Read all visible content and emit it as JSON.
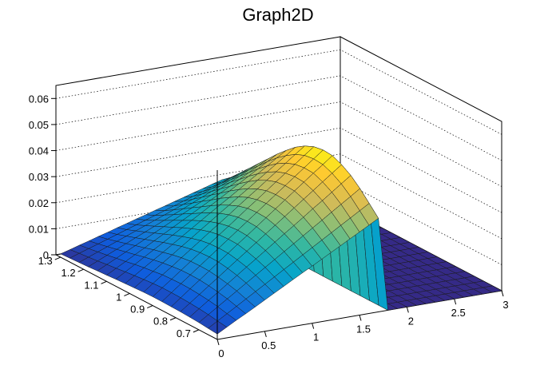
{
  "chart_data": {
    "type": "surface",
    "title": "Graph2D",
    "xlim": [
      0,
      3
    ],
    "ylim": [
      0.62,
      1.32
    ],
    "zlim": [
      0,
      0.065
    ],
    "x_ticks": [
      "0",
      "0.5",
      "1",
      "1.5",
      "2",
      "2.5",
      "3"
    ],
    "x_tick_values": [
      0,
      0.5,
      1,
      1.5,
      2,
      2.5,
      3
    ],
    "y_ticks": [
      "0.7",
      "0.8",
      "0.9",
      "1",
      "1.1",
      "1.2",
      "1.3"
    ],
    "y_tick_values": [
      0.7,
      0.8,
      0.9,
      1.0,
      1.1,
      1.2,
      1.3
    ],
    "z_ticks": [
      "0",
      "0.01",
      "0.02",
      "0.03",
      "0.04",
      "0.05",
      "0.06"
    ],
    "z_tick_values": [
      0,
      0.01,
      0.02,
      0.03,
      0.04,
      0.05,
      0.06
    ],
    "grid": "dotted back walls",
    "colormap": [
      "#352a87",
      "#0f5cdd",
      "#1481d6",
      "#06a4ca",
      "#2eb7a4",
      "#87bf77",
      "#d1bb59",
      "#fec832",
      "#f9fb0e"
    ],
    "surface_x": [
      0,
      0.1,
      0.2,
      0.3,
      0.4,
      0.5,
      0.6,
      0.7,
      0.8,
      0.9,
      1.0,
      1.1,
      1.2,
      1.3,
      1.4,
      1.5,
      1.6,
      1.7,
      1.8,
      1.9,
      2.0,
      2.1,
      2.2,
      2.3,
      2.4,
      2.5,
      2.6,
      2.7,
      2.8,
      2.9,
      3.0
    ],
    "surface_y": [
      0.62,
      0.66,
      0.7,
      0.74,
      0.78,
      0.82,
      0.86,
      0.9,
      0.94,
      0.98,
      1.02,
      1.06,
      1.1,
      1.14,
      1.18,
      1.22,
      1.26,
      1.3
    ],
    "surface_z": [
      [
        0.0021,
        0.0041,
        0.0061,
        0.008,
        0.01,
        0.012,
        0.014,
        0.016,
        0.018,
        0.02,
        0.0219,
        0.0239,
        0.0259,
        0.0279,
        0.0299,
        0.0319,
        0.0339,
        0.0359,
        0.0,
        0.0,
        0.0,
        0.0,
        0.0,
        0.0,
        0.0,
        0.0,
        0.0,
        0.0,
        0.0,
        0.0,
        0.0
      ],
      [
        0.0024,
        0.0046,
        0.0068,
        0.009,
        0.0112,
        0.0134,
        0.0156,
        0.0178,
        0.02,
        0.0222,
        0.0244,
        0.0266,
        0.0288,
        0.031,
        0.0332,
        0.0354,
        0.0376,
        0.0398,
        0.0,
        0.0,
        0.0,
        0.0,
        0.0,
        0.0,
        0.0,
        0.0,
        0.0,
        0.0,
        0.0,
        0.0,
        0.0
      ],
      [
        0.0028,
        0.0052,
        0.0076,
        0.01,
        0.0124,
        0.0148,
        0.0172,
        0.0196,
        0.022,
        0.0244,
        0.0268,
        0.0292,
        0.0316,
        0.034,
        0.0364,
        0.0388,
        0.0412,
        0.0436,
        0.0,
        0.0,
        0.0,
        0.0,
        0.0,
        0.0,
        0.0,
        0.0,
        0.0,
        0.0,
        0.0,
        0.0,
        0.0
      ],
      [
        0.003,
        0.0056,
        0.0082,
        0.0107,
        0.0133,
        0.0159,
        0.0185,
        0.021,
        0.0236,
        0.0262,
        0.0288,
        0.0313,
        0.0339,
        0.0365,
        0.039,
        0.0416,
        0.0442,
        0.0468,
        0.0,
        0.0,
        0.0,
        0.0,
        0.0,
        0.0,
        0.0,
        0.0,
        0.0,
        0.0,
        0.0,
        0.0,
        0.0
      ],
      [
        0.0032,
        0.0059,
        0.0086,
        0.0113,
        0.014,
        0.0167,
        0.0194,
        0.0221,
        0.0248,
        0.0275,
        0.0302,
        0.0329,
        0.0356,
        0.0383,
        0.041,
        0.0437,
        0.0464,
        0.0491,
        0.0,
        0.0,
        0.0,
        0.0,
        0.0,
        0.0,
        0.0,
        0.0,
        0.0,
        0.0,
        0.0,
        0.0,
        0.0
      ],
      [
        0.0033,
        0.0061,
        0.0089,
        0.0117,
        0.0145,
        0.0173,
        0.0201,
        0.0229,
        0.0256,
        0.0284,
        0.0312,
        0.034,
        0.0368,
        0.0396,
        0.0424,
        0.0452,
        0.0479,
        0.0507,
        0.0,
        0.0,
        0.0,
        0.0,
        0.0,
        0.0,
        0.0,
        0.0,
        0.0,
        0.0,
        0.0,
        0.0,
        0.0
      ],
      [
        0.0034,
        0.0062,
        0.009,
        0.0118,
        0.0146,
        0.0174,
        0.0202,
        0.023,
        0.0258,
        0.0286,
        0.0314,
        0.0342,
        0.037,
        0.0398,
        0.0426,
        0.0454,
        0.0482,
        0.051,
        0.0,
        0.0,
        0.0,
        0.0,
        0.0,
        0.0,
        0.0,
        0.0,
        0.0,
        0.0,
        0.0,
        0.0,
        0.0
      ],
      [
        0.0034,
        0.0062,
        0.0089,
        0.0117,
        0.0145,
        0.0172,
        0.02,
        0.0228,
        0.0255,
        0.0283,
        0.0311,
        0.0338,
        0.0366,
        0.0394,
        0.0421,
        0.0449,
        0.0477,
        0.0504,
        0.0,
        0.0,
        0.0,
        0.0,
        0.0,
        0.0,
        0.0,
        0.0,
        0.0,
        0.0,
        0.0,
        0.0,
        0.0
      ],
      [
        0.0033,
        0.006,
        0.0087,
        0.0113,
        0.014,
        0.0167,
        0.0194,
        0.0221,
        0.0247,
        0.0274,
        0.0301,
        0.0328,
        0.0354,
        0.0381,
        0.0408,
        0.0435,
        0.0462,
        0.0488,
        0.0,
        0.0,
        0.0,
        0.0,
        0.0,
        0.0,
        0.0,
        0.0,
        0.0,
        0.0,
        0.0,
        0.0,
        0.0
      ],
      [
        0.0031,
        0.0057,
        0.0082,
        0.0108,
        0.0133,
        0.0159,
        0.0184,
        0.021,
        0.0235,
        0.0261,
        0.0286,
        0.0312,
        0.0337,
        0.0363,
        0.0388,
        0.0414,
        0.0439,
        0.0465,
        0.0,
        0.0,
        0.0,
        0.0,
        0.0,
        0.0,
        0.0,
        0.0,
        0.0,
        0.0,
        0.0,
        0.0,
        0.0
      ],
      [
        0.0029,
        0.0053,
        0.0077,
        0.0101,
        0.0124,
        0.0148,
        0.0172,
        0.0196,
        0.022,
        0.0244,
        0.0268,
        0.0291,
        0.0315,
        0.0339,
        0.0363,
        0.0387,
        0.0411,
        0.0434,
        0.0,
        0.0,
        0.0,
        0.0,
        0.0,
        0.0,
        0.0,
        0.0,
        0.0,
        0.0,
        0.0,
        0.0,
        0.0
      ],
      [
        0.0027,
        0.0049,
        0.0071,
        0.0093,
        0.0115,
        0.0137,
        0.0159,
        0.0181,
        0.0203,
        0.0225,
        0.0247,
        0.0269,
        0.0291,
        0.0313,
        0.0335,
        0.0357,
        0.0379,
        0.0401,
        0.0,
        0.0,
        0.0,
        0.0,
        0.0,
        0.0,
        0.0,
        0.0,
        0.0,
        0.0,
        0.0,
        0.0,
        0.0
      ],
      [
        0.0024,
        0.0044,
        0.0064,
        0.0084,
        0.0104,
        0.0124,
        0.0144,
        0.0164,
        0.0184,
        0.0204,
        0.0224,
        0.0244,
        0.0264,
        0.0284,
        0.0304,
        0.0324,
        0.0344,
        0.0364,
        0.0,
        0.0,
        0.0,
        0.0,
        0.0,
        0.0,
        0.0,
        0.0,
        0.0,
        0.0,
        0.0,
        0.0,
        0.0
      ],
      [
        0.0022,
        0.004,
        0.0058,
        0.0076,
        0.0094,
        0.0112,
        0.013,
        0.0148,
        0.0166,
        0.0184,
        0.0202,
        0.022,
        0.0238,
        0.0256,
        0.0274,
        0.0292,
        0.031,
        0.0328,
        0.0,
        0.0,
        0.0,
        0.0,
        0.0,
        0.0,
        0.0,
        0.0,
        0.0,
        0.0,
        0.0,
        0.0,
        0.0
      ],
      [
        0.0019,
        0.0035,
        0.0051,
        0.0067,
        0.0083,
        0.0099,
        0.0115,
        0.0131,
        0.0147,
        0.0163,
        0.0179,
        0.0195,
        0.0211,
        0.0227,
        0.0243,
        0.0259,
        0.0275,
        0.0291,
        0.0,
        0.0,
        0.0,
        0.0,
        0.0,
        0.0,
        0.0,
        0.0,
        0.0,
        0.0,
        0.0,
        0.0,
        0.0
      ],
      [
        0.0017,
        0.0031,
        0.0045,
        0.0059,
        0.0073,
        0.0087,
        0.0101,
        0.0115,
        0.0129,
        0.0143,
        0.0157,
        0.0171,
        0.0185,
        0.0199,
        0.0213,
        0.0227,
        0.0241,
        0.0255,
        0.0,
        0.0,
        0.0,
        0.0,
        0.0,
        0.0,
        0.0,
        0.0,
        0.0,
        0.0,
        0.0,
        0.0,
        0.0
      ],
      [
        0.0015,
        0.0027,
        0.0039,
        0.0051,
        0.0063,
        0.0075,
        0.0087,
        0.0099,
        0.0111,
        0.0123,
        0.0135,
        0.0147,
        0.0159,
        0.0171,
        0.0183,
        0.0195,
        0.0207,
        0.0219,
        0.0,
        0.0,
        0.0,
        0.0,
        0.0,
        0.0,
        0.0,
        0.0,
        0.0,
        0.0,
        0.0,
        0.0,
        0.0
      ],
      [
        0.0013,
        0.0023,
        0.0034,
        0.0044,
        0.0055,
        0.0065,
        0.0076,
        0.0086,
        0.0097,
        0.0107,
        0.0118,
        0.0128,
        0.0139,
        0.0149,
        0.016,
        0.017,
        0.0181,
        0.0191,
        0.0,
        0.0,
        0.0,
        0.0,
        0.0,
        0.0,
        0.0,
        0.0,
        0.0,
        0.0,
        0.0,
        0.0,
        0.0
      ]
    ]
  }
}
